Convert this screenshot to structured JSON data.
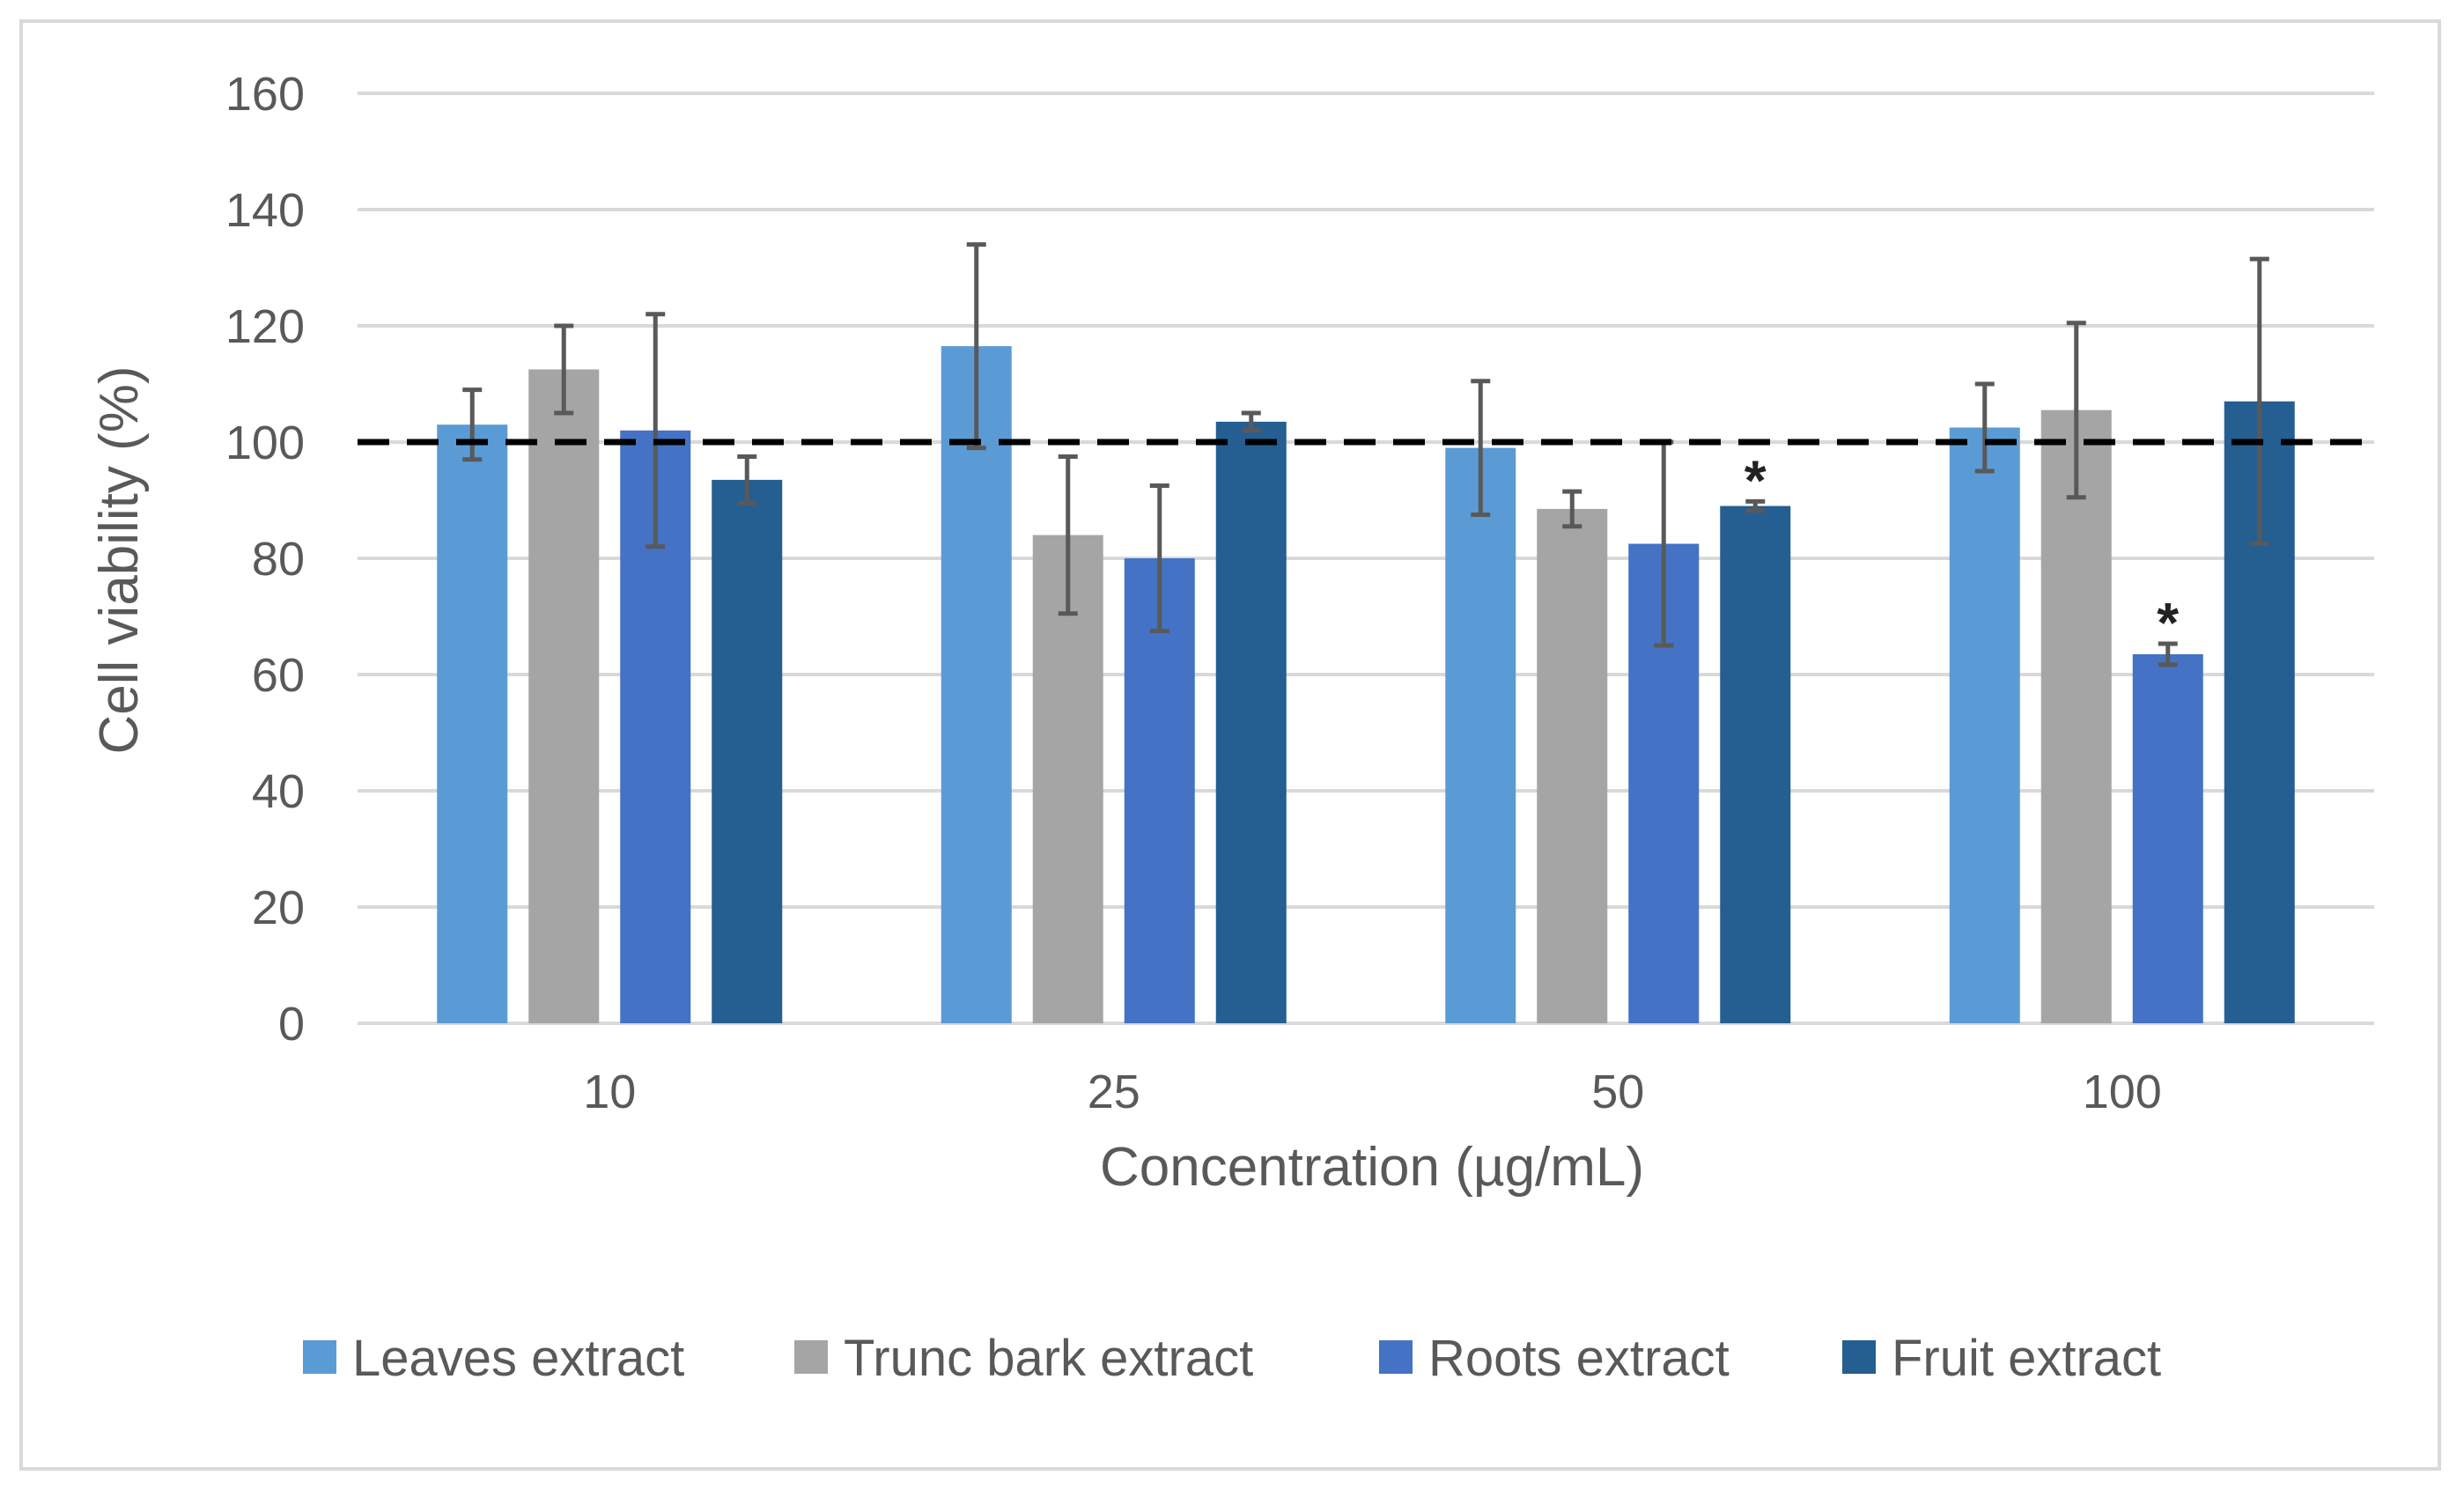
{
  "chart_data": {
    "type": "bar",
    "title": "",
    "xlabel": "Concentration (µg/mL)",
    "ylabel": "Cell viability (%)",
    "ylim": [
      0,
      160
    ],
    "yticks": [
      "0",
      "20",
      "40",
      "60",
      "80",
      "100",
      "120",
      "140",
      "160"
    ],
    "categories": [
      "10",
      "25",
      "50",
      "100"
    ],
    "reference_line": 100,
    "legend_position": "bottom",
    "series": [
      {
        "name": "Leaves extract",
        "color": "#5b9bd5",
        "values": [
          103,
          116.5,
          99,
          102.5
        ],
        "errors": [
          6,
          17.5,
          11.5,
          7.5
        ],
        "significant": [
          false,
          false,
          false,
          false
        ]
      },
      {
        "name": "Trunc bark extract",
        "color": "#a5a5a5",
        "values": [
          112.5,
          84,
          88.5,
          105.5
        ],
        "errors": [
          7.5,
          13.5,
          3,
          15
        ],
        "significant": [
          false,
          false,
          false,
          false
        ]
      },
      {
        "name": "Roots extract",
        "color": "#4472c4",
        "values": [
          102,
          80,
          82.5,
          63.5
        ],
        "errors": [
          20,
          12.5,
          17.5,
          1.8
        ],
        "significant": [
          false,
          false,
          false,
          true
        ]
      },
      {
        "name": "Fruit extract",
        "color": "#255e91",
        "values": [
          93.5,
          103.5,
          89,
          107
        ],
        "errors": [
          4,
          1.5,
          0.8,
          24.5
        ],
        "significant": [
          false,
          false,
          true,
          false
        ]
      }
    ],
    "significance_marker": "*"
  }
}
